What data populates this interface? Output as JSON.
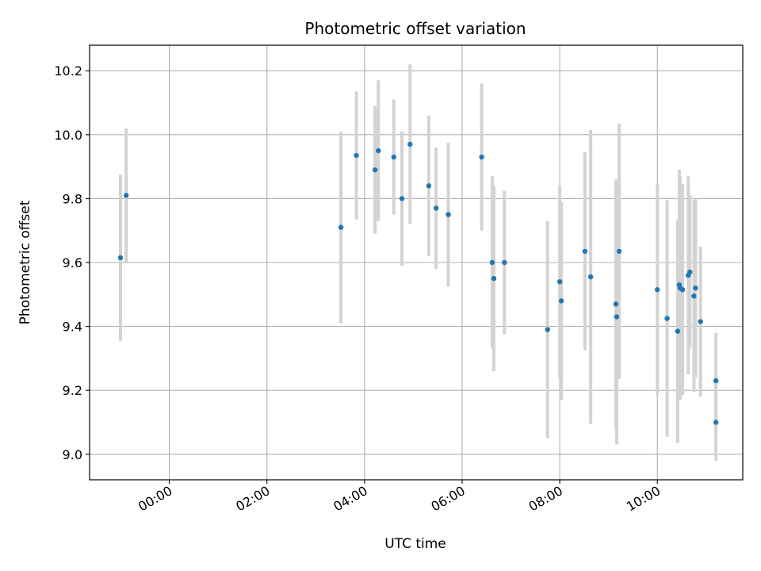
{
  "chart_data": {
    "type": "scatter",
    "title": "Photometric offset variation",
    "xlabel": "UTC time",
    "ylabel": "Photometric offset",
    "x_unit": "UTC time (HH:MM)",
    "xlim": [
      "-01:38",
      "11:45"
    ],
    "ylim": [
      8.92,
      10.28
    ],
    "x_ticks": [
      "00:00",
      "02:00",
      "04:00",
      "06:00",
      "08:00",
      "10:00"
    ],
    "y_ticks": [
      9.0,
      9.2,
      9.4,
      9.6,
      9.8,
      10.0,
      10.2
    ],
    "grid": true,
    "colors": {
      "points": "#1f77b4",
      "error_bars": "#d3d3d3",
      "grid": "#b0b0b0"
    },
    "series": [
      {
        "points": [
          {
            "x": "-01:00",
            "y": 9.615,
            "err": 0.26
          },
          {
            "x": "-00:53",
            "y": 9.81,
            "err": 0.21
          },
          {
            "x": "03:31",
            "y": 9.71,
            "err": 0.3
          },
          {
            "x": "03:50",
            "y": 9.935,
            "err": 0.2
          },
          {
            "x": "04:13",
            "y": 9.89,
            "err": 0.2
          },
          {
            "x": "04:17",
            "y": 9.95,
            "err": 0.22
          },
          {
            "x": "04:36",
            "y": 9.93,
            "err": 0.18
          },
          {
            "x": "04:46",
            "y": 9.8,
            "err": 0.21
          },
          {
            "x": "04:56",
            "y": 9.97,
            "err": 0.25
          },
          {
            "x": "05:19",
            "y": 9.84,
            "err": 0.22
          },
          {
            "x": "05:28",
            "y": 9.77,
            "err": 0.19
          },
          {
            "x": "05:43",
            "y": 9.75,
            "err": 0.225
          },
          {
            "x": "06:24",
            "y": 9.93,
            "err": 0.23
          },
          {
            "x": "06:37",
            "y": 9.6,
            "err": 0.27
          },
          {
            "x": "06:39",
            "y": 9.55,
            "err": 0.29
          },
          {
            "x": "06:52",
            "y": 9.6,
            "err": 0.225
          },
          {
            "x": "07:45",
            "y": 9.39,
            "err": 0.34
          },
          {
            "x": "08:00",
            "y": 9.54,
            "err": 0.3
          },
          {
            "x": "08:02",
            "y": 9.48,
            "err": 0.31
          },
          {
            "x": "08:31",
            "y": 9.635,
            "err": 0.31
          },
          {
            "x": "08:38",
            "y": 9.555,
            "err": 0.46
          },
          {
            "x": "09:09",
            "y": 9.47,
            "err": 0.39
          },
          {
            "x": "09:10",
            "y": 9.43,
            "err": 0.4
          },
          {
            "x": "09:13",
            "y": 9.635,
            "err": 0.4
          },
          {
            "x": "10:00",
            "y": 9.515,
            "err": 0.33
          },
          {
            "x": "10:12",
            "y": 9.425,
            "err": 0.37
          },
          {
            "x": "10:25",
            "y": 9.385,
            "err": 0.35
          },
          {
            "x": "10:27",
            "y": 9.53,
            "err": 0.36
          },
          {
            "x": "10:28",
            "y": 9.52,
            "err": 0.35
          },
          {
            "x": "10:31",
            "y": 9.515,
            "err": 0.33
          },
          {
            "x": "10:38",
            "y": 9.56,
            "err": 0.31
          },
          {
            "x": "10:40",
            "y": 9.57,
            "err": 0.24
          },
          {
            "x": "10:45",
            "y": 9.495,
            "err": 0.3
          },
          {
            "x": "10:47",
            "y": 9.52,
            "err": 0.28
          },
          {
            "x": "10:53",
            "y": 9.415,
            "err": 0.235
          },
          {
            "x": "11:12",
            "y": 9.23,
            "err": 0.15
          },
          {
            "x": "11:12",
            "y": 9.1,
            "err": 0.12
          }
        ]
      }
    ]
  }
}
